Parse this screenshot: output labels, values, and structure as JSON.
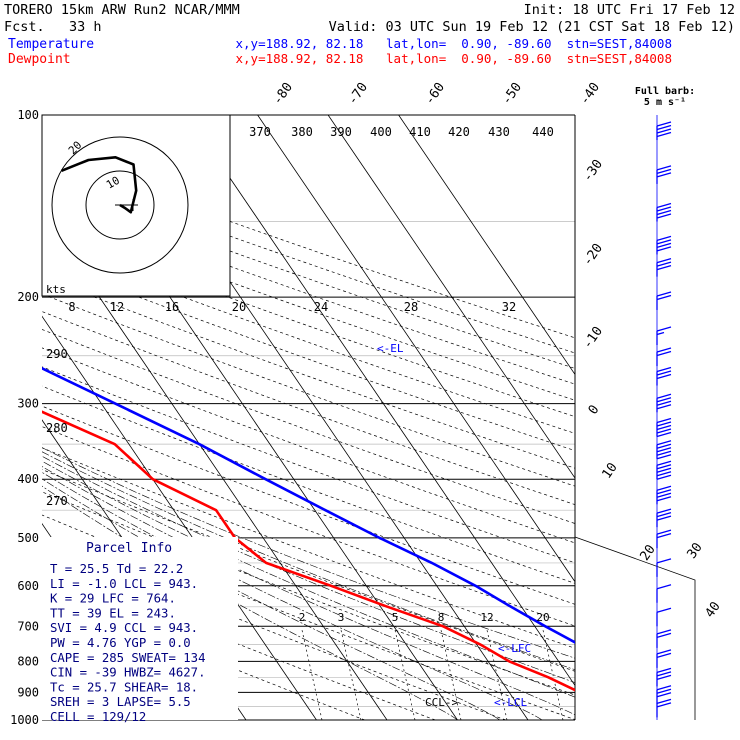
{
  "header": {
    "model": "TORERO  15km ARW    Run2    NCAR/MMM",
    "init": "Init: 18 UTC Fri 17 Feb 12",
    "fcst": "Fcst.   33 h",
    "valid": "Valid: 03 UTC Sun 19 Feb 12 (21 CST Sat 18 Feb 12)",
    "temp_label": "Temperature",
    "dew_label": "Dewpoint",
    "temp_loc": "x,y=188.92, 82.18   lat,lon=  0.90, -89.60  stn=SEST,84008",
    "dew_loc": "x,y=188.92, 82.18   lat,lon=  0.90, -89.60  stn=SEST,84008",
    "barb_title": "Full barb:",
    "barb_unit": "5 m s⁻¹"
  },
  "colors": {
    "temperature": "#0000ff",
    "dewpoint": "#ff0000",
    "temp_label": "#0000ff",
    "dew_label": "#ff0000",
    "info_text": "#000080",
    "wind": "#0000ff"
  },
  "chart_data": {
    "type": "line",
    "title": "Skew-T log-P sounding",
    "y_scale": "log",
    "pressure_levels": [
      "100",
      "200",
      "300",
      "400",
      "500",
      "600",
      "700",
      "800",
      "900",
      "1000"
    ],
    "isotherm_labels": [
      "-80",
      "-70",
      "-60",
      "-50",
      "-40",
      "-30",
      "-20",
      "-10",
      "0",
      "10",
      "20",
      "30",
      "40"
    ],
    "theta_labels": [
      "370",
      "380",
      "390",
      "400",
      "410",
      "420",
      "430",
      "440"
    ],
    "theta_left_labels": [
      "290",
      "280",
      "270"
    ],
    "mixing_ratio_labels": [
      "2",
      "3",
      "5",
      "8",
      "12",
      "20"
    ],
    "hodo_speed_labels": [
      "8",
      "12",
      "16",
      "20",
      "24",
      "28",
      "32"
    ],
    "hodo_ring_labels": [
      "20",
      "10"
    ],
    "hodo_unit": "kts",
    "level_marks": {
      "el": "<-EL",
      "lfc": "<-LFC",
      "lcl": "<-LCL",
      "ccl": "CCL->"
    },
    "series": [
      {
        "name": "Temperature",
        "color": "#0000ff",
        "points": [
          {
            "p": 1000,
            "t": 26.5
          },
          {
            "p": 980,
            "t": 25.5
          },
          {
            "p": 950,
            "t": 23.2
          },
          {
            "p": 900,
            "t": 22.0
          },
          {
            "p": 850,
            "t": 19.5
          },
          {
            "p": 800,
            "t": 17.0
          },
          {
            "p": 750,
            "t": 14.5
          },
          {
            "p": 700,
            "t": 11.5
          },
          {
            "p": 650,
            "t": 8.5
          },
          {
            "p": 600,
            "t": 5.5
          },
          {
            "p": 550,
            "t": 1.5
          },
          {
            "p": 500,
            "t": -3.5
          },
          {
            "p": 450,
            "t": -8.5
          },
          {
            "p": 400,
            "t": -14.0
          },
          {
            "p": 350,
            "t": -20.0
          },
          {
            "p": 300,
            "t": -28.0
          },
          {
            "p": 250,
            "t": -37.5
          },
          {
            "p": 200,
            "t": -49.0
          },
          {
            "p": 175,
            "t": -55.5
          },
          {
            "p": 150,
            "t": -63.0
          },
          {
            "p": 125,
            "t": -73.0
          },
          {
            "p": 110,
            "t": -80.0
          },
          {
            "p": 100,
            "t": -84.0
          }
        ]
      },
      {
        "name": "Dewpoint",
        "color": "#ff0000",
        "points": [
          {
            "p": 1000,
            "t": 22.2
          },
          {
            "p": 980,
            "t": 22.0
          },
          {
            "p": 950,
            "t": 21.0
          },
          {
            "p": 930,
            "t": 15.0
          },
          {
            "p": 900,
            "t": 10.0
          },
          {
            "p": 850,
            "t": 7.0
          },
          {
            "p": 800,
            "t": 3.0
          },
          {
            "p": 750,
            "t": 0.5
          },
          {
            "p": 700,
            "t": -3.0
          },
          {
            "p": 650,
            "t": -9.0
          },
          {
            "p": 600,
            "t": -15.0
          },
          {
            "p": 550,
            "t": -22.0
          },
          {
            "p": 500,
            "t": -24.0
          },
          {
            "p": 450,
            "t": -24.0
          },
          {
            "p": 400,
            "t": -30.0
          },
          {
            "p": 350,
            "t": -32.0
          },
          {
            "p": 300,
            "t": -41.0
          },
          {
            "p": 250,
            "t": -61.0
          },
          {
            "p": 220,
            "t": -74.0
          },
          {
            "p": 200,
            "t": -80.0
          },
          {
            "p": 150,
            "t": -90.0
          },
          {
            "p": 100,
            "t": -103.0
          }
        ]
      }
    ],
    "hodograph": [
      {
        "u": 0.0,
        "v": 0.0
      },
      {
        "u": 0.5,
        "v": -0.3
      },
      {
        "u": 1.2,
        "v": -0.8
      },
      {
        "u": 1.8,
        "v": 1.6
      },
      {
        "u": 1.5,
        "v": 4.5
      },
      {
        "u": -0.5,
        "v": 5.3
      },
      {
        "u": -3.5,
        "v": 5.0
      },
      {
        "u": -4.5,
        "v": 4.6
      },
      {
        "u": -6.5,
        "v": 3.8
      }
    ],
    "wind_barbs": [
      {
        "p": 110,
        "spd": 20
      },
      {
        "p": 130,
        "spd": 15
      },
      {
        "p": 150,
        "spd": 20
      },
      {
        "p": 170,
        "spd": 20
      },
      {
        "p": 185,
        "spd": 15
      },
      {
        "p": 210,
        "spd": 10
      },
      {
        "p": 240,
        "spd": 8
      },
      {
        "p": 260,
        "spd": 10
      },
      {
        "p": 280,
        "spd": 15
      },
      {
        "p": 310,
        "spd": 20
      },
      {
        "p": 340,
        "spd": 25
      },
      {
        "p": 370,
        "spd": 25
      },
      {
        "p": 400,
        "spd": 25
      },
      {
        "p": 440,
        "spd": 20
      },
      {
        "p": 480,
        "spd": 15
      },
      {
        "p": 520,
        "spd": 10
      },
      {
        "p": 580,
        "spd": 5
      },
      {
        "p": 640,
        "spd": 5
      },
      {
        "p": 700,
        "spd": 5
      },
      {
        "p": 760,
        "spd": 10
      },
      {
        "p": 820,
        "spd": 10
      },
      {
        "p": 880,
        "spd": 15
      },
      {
        "p": 940,
        "spd": 15
      },
      {
        "p": 990,
        "spd": 10
      }
    ]
  },
  "parcel": {
    "title": "Parcel Info",
    "rows": [
      "T  =    25.5  Td =  22.2",
      "LI =    -1.0  LCL =  943.",
      "K  =      29  LFC =  764.",
      "TT =      39  EL  =  243.",
      "SVI =    4.9  CCL =  943.",
      "PW =    4.76  YGP =   0.0",
      "CAPE =   285  SWEAT=  134",
      "CIN =    -39  HWBZ= 4627.",
      "Tc =    25.7  SHEAR=  18.",
      "SREH =     3  LAPSE=  5.5",
      "CELL = 129/12"
    ]
  }
}
